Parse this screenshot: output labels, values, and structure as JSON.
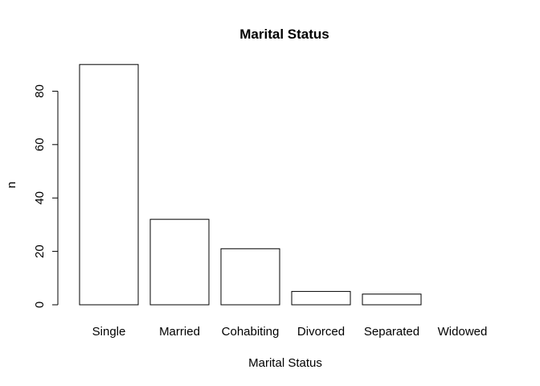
{
  "chart_data": {
    "type": "bar",
    "title": "Marital Status",
    "xlabel": "Marital Status",
    "ylabel": "n",
    "categories": [
      "Single",
      "Married",
      "Cohabiting",
      "Divorced",
      "Separated",
      "Widowed"
    ],
    "values": [
      90,
      32,
      21,
      5,
      4,
      0
    ],
    "ylim": [
      0,
      90
    ],
    "yticks": [
      0,
      20,
      40,
      60,
      80
    ],
    "grid": false,
    "legend": "none",
    "colors": {
      "bar_fill": "#ffffff",
      "bar_stroke": "#000000"
    }
  }
}
